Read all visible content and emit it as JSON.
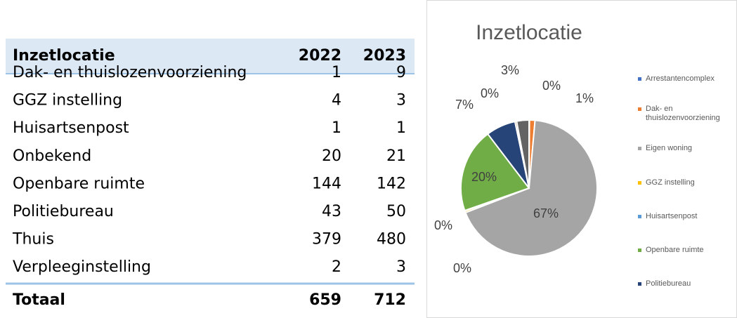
{
  "table": {
    "header": [
      "Inzetlocatie",
      "2022",
      "2023"
    ],
    "rows": [
      [
        "Dak- en thuislozenvoorziening",
        "1",
        "9"
      ],
      [
        "GGZ instelling",
        "4",
        "3"
      ],
      [
        "Huisartsenpost",
        "1",
        "1"
      ],
      [
        "Onbekend",
        "20",
        "21"
      ],
      [
        "Openbare ruimte",
        "144",
        "142"
      ],
      [
        "Politiebureau",
        "43",
        "50"
      ],
      [
        "Thuis",
        "379",
        "480"
      ],
      [
        "Verpleeginstelling",
        "2",
        "3"
      ]
    ],
    "footer": [
      "Totaal",
      "659",
      "712"
    ]
  },
  "chart_data": {
    "type": "pie",
    "title": "Inzetlocatie",
    "categories": [
      "Arrestantencomplex",
      "Dak- en thuislozenvoorziening",
      "Eigen woning",
      "GGZ instelling",
      "Huisartsenpost",
      "Openbare ruimte",
      "Politiebureau",
      null,
      null
    ],
    "values": [
      0.1,
      1.3,
      67.4,
      0.4,
      0.1,
      19.9,
      7.0,
      0.4,
      2.9
    ],
    "value_labels": [
      "0%",
      "1%",
      "67%",
      "0%",
      "0%",
      "20%",
      "7%",
      "0%",
      "3%"
    ],
    "colors": [
      "#4472c4",
      "#ed7d31",
      "#a5a5a5",
      "#ffc000",
      "#5b9bd5",
      "#70ad47",
      "#264478",
      "#9e480e",
      "#636363"
    ],
    "legend": "right"
  }
}
